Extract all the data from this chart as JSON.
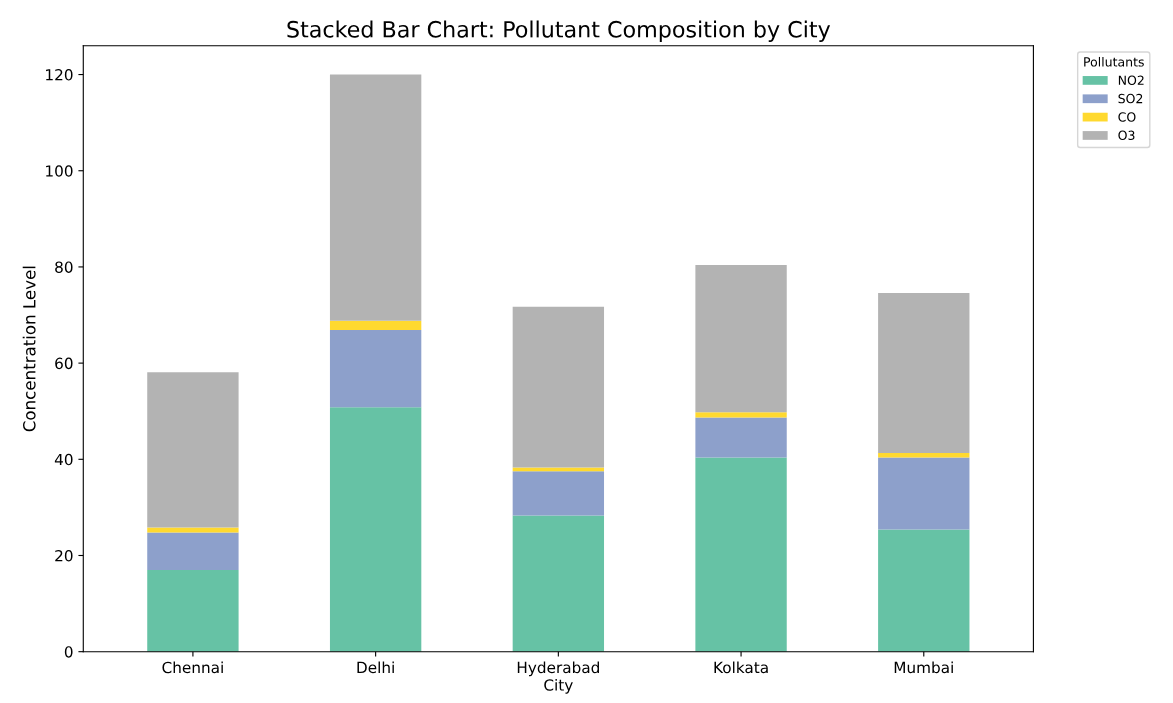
{
  "chart_data": {
    "type": "bar",
    "stacked": true,
    "title": "Stacked Bar Chart: Pollutant Composition by City",
    "xlabel": "City",
    "ylabel": "Concentration Level",
    "legend_title": "Pollutants",
    "legend": "top right",
    "categories": [
      "Chennai",
      "Delhi",
      "Hyderabad",
      "Kolkata",
      "Mumbai"
    ],
    "series": [
      {
        "name": "NO2",
        "color": "#66c2a5",
        "values": [
          17,
          50.8,
          28.3,
          40.4,
          25.4
        ]
      },
      {
        "name": "SO2",
        "color": "#8da0cb",
        "values": [
          7.8,
          16.1,
          9.2,
          8.3,
          15.0
        ]
      },
      {
        "name": "CO",
        "color": "#ffd92f",
        "values": [
          1.0,
          1.9,
          0.8,
          1.1,
          0.9
        ]
      },
      {
        "name": "O3",
        "color": "#b3b3b3",
        "values": [
          32.3,
          51.2,
          33.4,
          30.6,
          33.3
        ]
      }
    ],
    "ylim": [
      0,
      126
    ],
    "yticks": [
      0,
      20,
      40,
      60,
      80,
      100,
      120
    ],
    "grid": false
  }
}
